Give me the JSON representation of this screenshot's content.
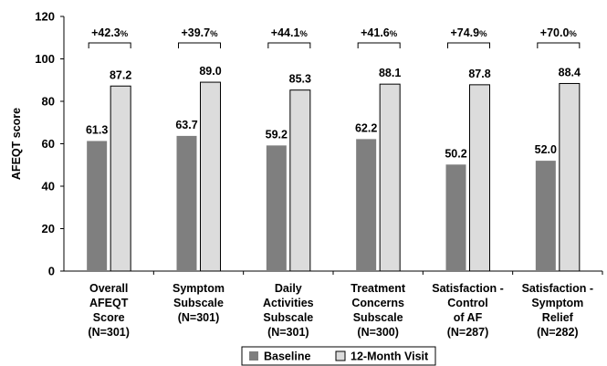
{
  "chart_data": {
    "type": "bar",
    "ylabel": "AFEQT score",
    "ylim": [
      0,
      120
    ],
    "yticks": [
      0,
      20,
      40,
      60,
      80,
      100,
      120
    ],
    "grid": false,
    "legend_position": "bottom",
    "categories": [
      [
        "Overall",
        "AFEQT",
        "Score",
        "(N=301)"
      ],
      [
        "Symptom",
        "Subscale",
        "(N=301)"
      ],
      [
        "Daily",
        "Activities",
        "Subscale",
        "(N=301)"
      ],
      [
        "Treatment",
        "Concerns",
        "Subscale",
        "(N=300)"
      ],
      [
        "Satisfaction -",
        "Control",
        "of AF",
        "(N=287)"
      ],
      [
        "Satisfaction -",
        "Symptom",
        "Relief",
        "(N=282)"
      ]
    ],
    "series": [
      {
        "name": "Baseline",
        "color": "#7f7f7f",
        "values": [
          61.3,
          63.7,
          59.2,
          62.2,
          50.2,
          52.0
        ],
        "labels": [
          "61.3",
          "63.7",
          "59.2",
          "62.2",
          "50.2",
          "52.0"
        ]
      },
      {
        "name": "12-Month Visit",
        "color": "#dcdcdc",
        "values": [
          87.2,
          89.0,
          85.3,
          88.1,
          87.8,
          88.4
        ],
        "labels": [
          "87.2",
          "89.0",
          "85.3",
          "88.1",
          "87.8",
          "88.4"
        ]
      }
    ],
    "annotations": [
      {
        "value": "+42.3",
        "unit": "%"
      },
      {
        "value": "+39.7",
        "unit": "%"
      },
      {
        "value": "+44.1",
        "unit": "%"
      },
      {
        "value": "+41.6",
        "unit": "%"
      },
      {
        "value": "+74.9",
        "unit": "%"
      },
      {
        "value": "+70.0",
        "unit": "%"
      }
    ]
  }
}
